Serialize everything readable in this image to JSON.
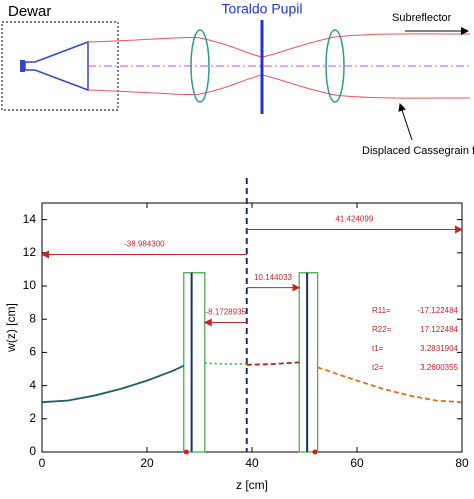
{
  "diagram": {
    "labels": [
      "Dewar",
      "Toraldo Pupil",
      "Subreflector",
      "Displaced Cassegrain focus"
    ]
  },
  "chart_data": {
    "type": "line",
    "xlabel": "z [cm]",
    "ylabel": "w(z) [cm]",
    "xlim": [
      0,
      80
    ],
    "ylim": [
      0,
      15
    ],
    "xticks": [
      0,
      20,
      40,
      60,
      80
    ],
    "yticks": [
      0,
      2,
      4,
      6,
      8,
      10,
      12,
      14
    ],
    "series": [
      {
        "color": "#1f5f6b",
        "style": "solid",
        "x": [
          0,
          5,
          10,
          15,
          20,
          25,
          27
        ],
        "values": [
          3,
          3.1,
          3.4,
          3.8,
          4.3,
          4.9,
          5.2
        ]
      },
      {
        "color": "#4caf50",
        "style": "dotted",
        "x": [
          31,
          35,
          39
        ],
        "values": [
          5.35,
          5.3,
          5.3
        ]
      },
      {
        "color": "#b01c1c",
        "style": "dashed",
        "x": [
          39,
          44,
          49
        ],
        "values": [
          5.25,
          5.3,
          5.4
        ]
      },
      {
        "color": "#e0701c",
        "style": "dashed",
        "x": [
          52.5,
          60,
          65,
          70,
          75,
          80
        ],
        "values": [
          5.1,
          4.3,
          3.8,
          3.4,
          3.1,
          3.0
        ]
      }
    ],
    "pupil_x": 39,
    "lenses": [
      {
        "x": [
          27,
          31
        ],
        "top": 10.8,
        "inner": 28.5
      },
      {
        "x": [
          49,
          52.5
        ],
        "top": 10.8,
        "inner": 50.5
      }
    ],
    "focus_points": [
      27.5,
      52
    ],
    "annotations": [
      {
        "text": "41.424099",
        "x": [
          39,
          80
        ],
        "y": 13.4
      },
      {
        "text": "-38.984300",
        "x": [
          39,
          0
        ],
        "y": 11.9
      },
      {
        "text": "10.144033",
        "x": [
          39,
          49
        ],
        "y": 9.9
      },
      {
        "text": "-8.1728935",
        "x": [
          39,
          31
        ],
        "y": 7.8
      }
    ],
    "parameters": [
      {
        "name": "R11=",
        "value": "-17.122484"
      },
      {
        "name": "R22=",
        "value": "17.122484"
      },
      {
        "name": "t1=",
        "value": "3.2831904"
      },
      {
        "name": "t2=",
        "value": "3.2600355"
      }
    ]
  }
}
